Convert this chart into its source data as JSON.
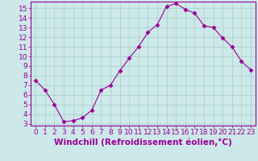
{
  "x": [
    0,
    1,
    2,
    3,
    4,
    5,
    6,
    7,
    8,
    9,
    10,
    11,
    12,
    13,
    14,
    15,
    16,
    17,
    18,
    19,
    20,
    21,
    22,
    23
  ],
  "y": [
    7.5,
    6.5,
    5.0,
    3.2,
    3.3,
    3.6,
    4.4,
    6.5,
    7.0,
    8.5,
    9.8,
    11.0,
    12.5,
    13.3,
    15.2,
    15.5,
    14.9,
    14.5,
    13.2,
    13.0,
    11.9,
    11.0,
    9.5,
    8.6
  ],
  "line_color": "#990099",
  "marker": "D",
  "marker_size": 2.5,
  "bg_color": "#cce8e8",
  "grid_color": "#aacccc",
  "xlabel": "Windchill (Refroidissement éolien,°C)",
  "ylabel": "",
  "xlim": [
    -0.5,
    23.5
  ],
  "ylim": [
    2.8,
    15.7
  ],
  "yticks": [
    3,
    4,
    5,
    6,
    7,
    8,
    9,
    10,
    11,
    12,
    13,
    14,
    15
  ],
  "xticks": [
    0,
    1,
    2,
    3,
    4,
    5,
    6,
    7,
    8,
    9,
    10,
    11,
    12,
    13,
    14,
    15,
    16,
    17,
    18,
    19,
    20,
    21,
    22,
    23
  ],
  "tick_fontsize": 6.5,
  "xlabel_fontsize": 7.5,
  "label_color": "#990099"
}
